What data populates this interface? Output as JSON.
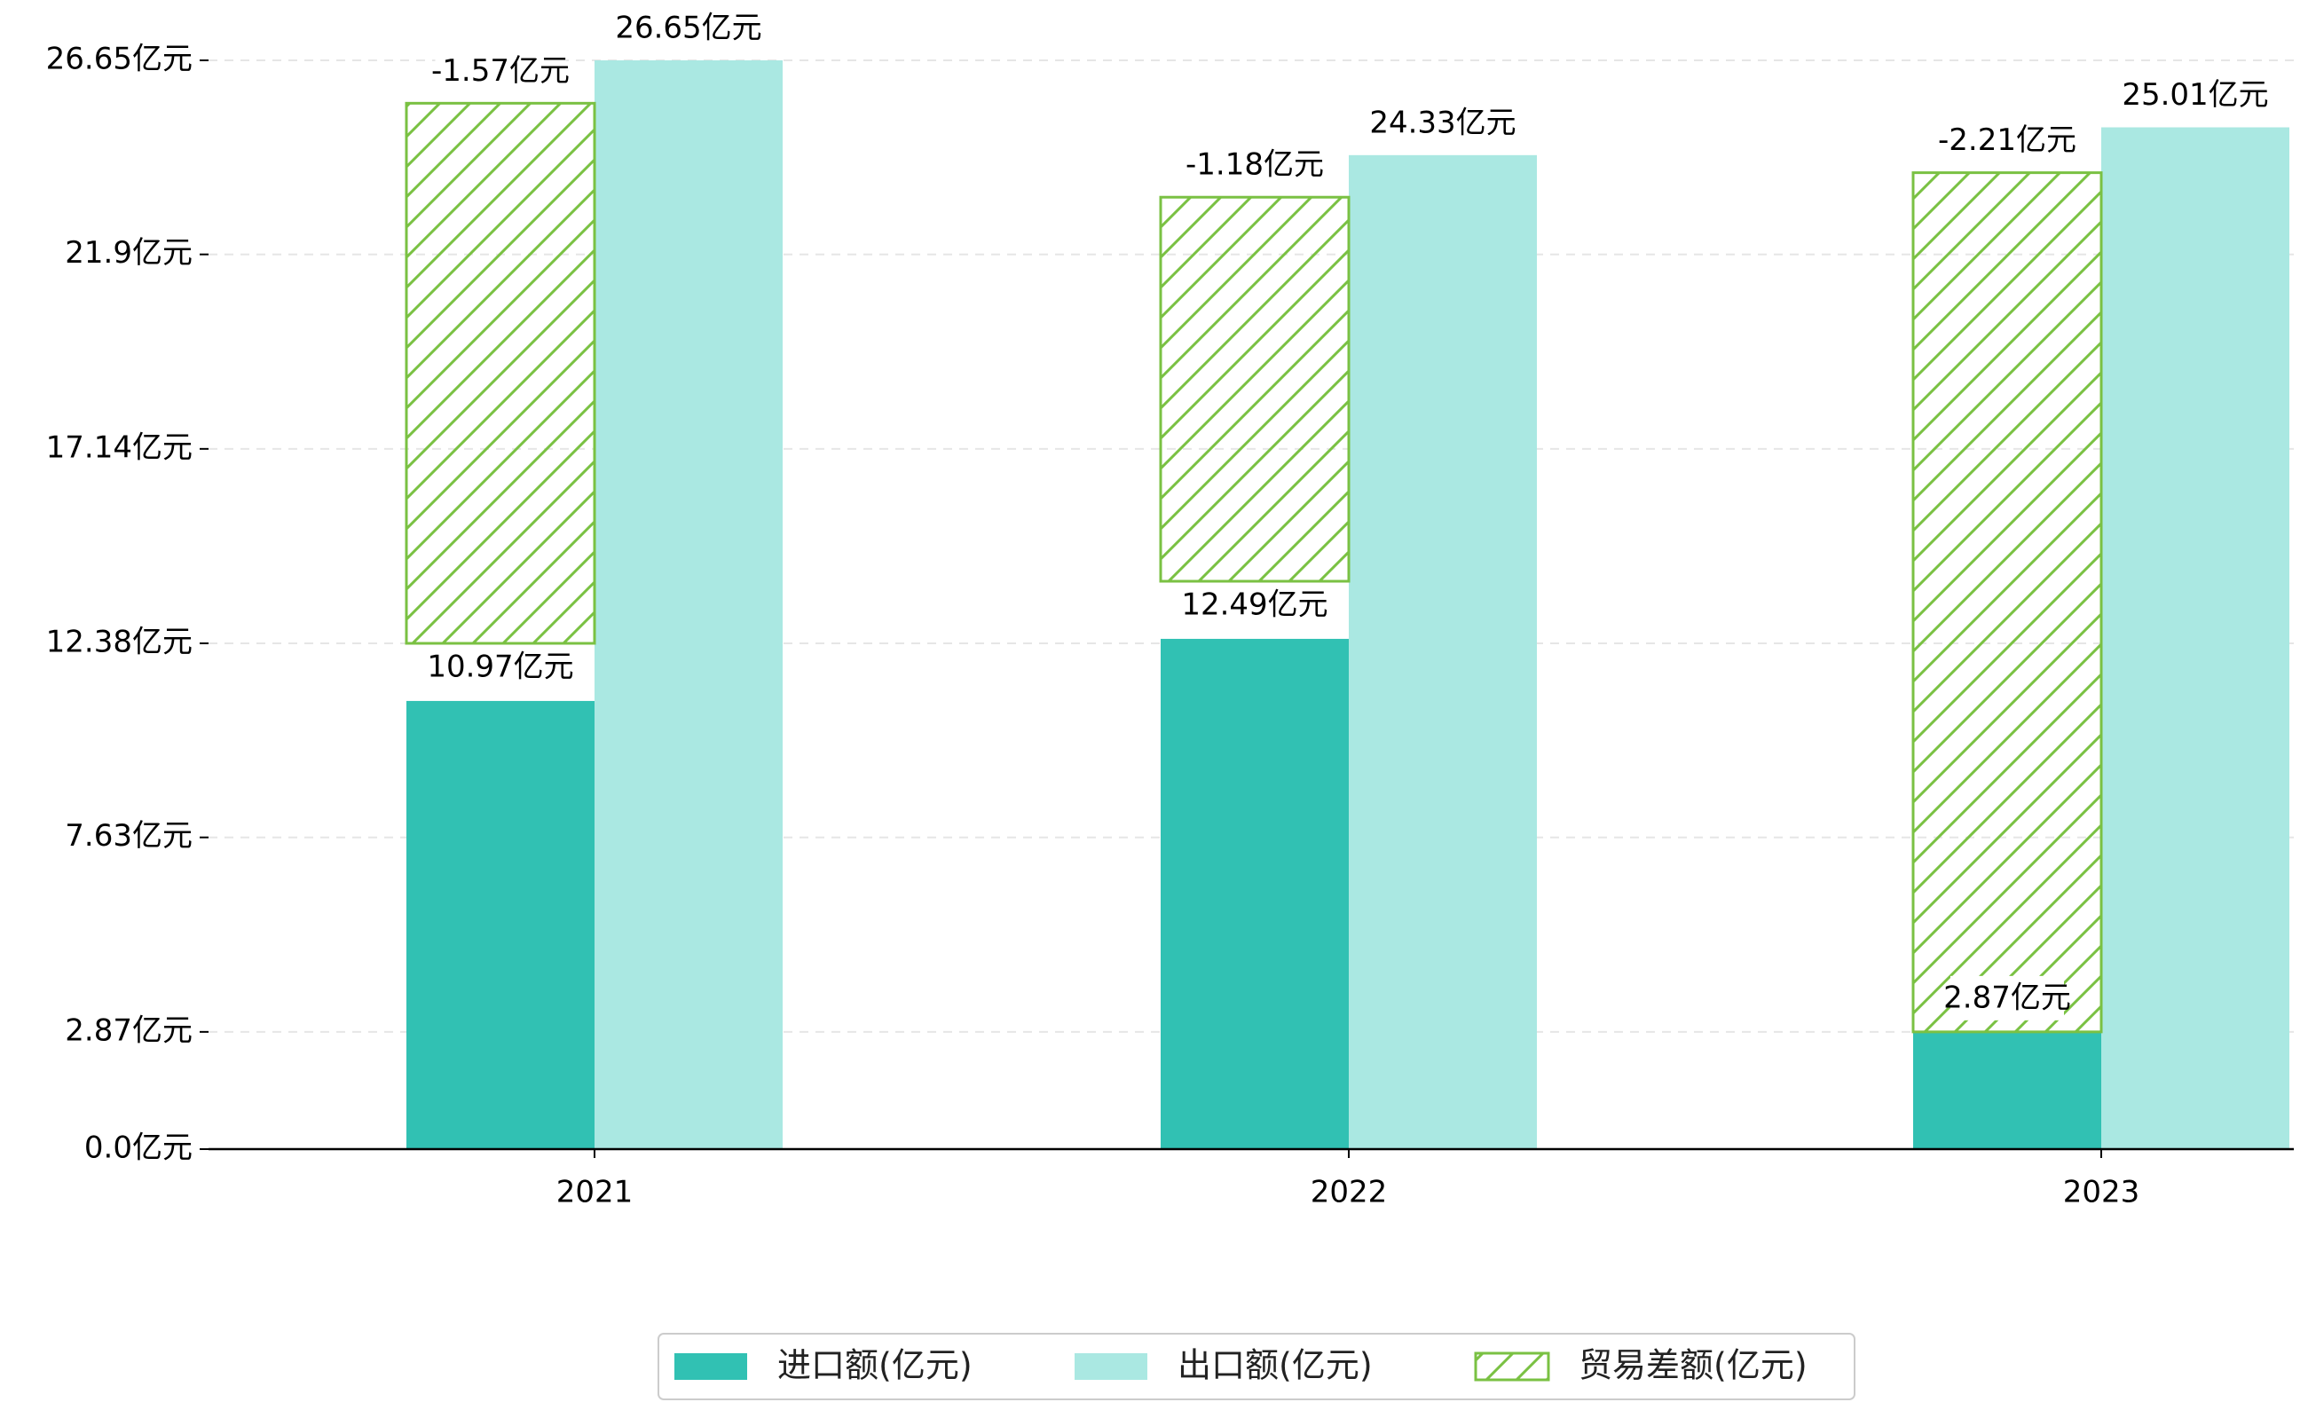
{
  "colors": {
    "import": "#31c1b3",
    "export": "#aae8e2",
    "balance_stroke": "#7ac143",
    "axis": "#000000",
    "grid": "#e6e6e6"
  },
  "legend": {
    "items": [
      {
        "label": "进口额(亿元)",
        "swatch": "import"
      },
      {
        "label": "出口额(亿元)",
        "swatch": "export"
      },
      {
        "label": "贸易差额(亿元)",
        "swatch": "balance"
      }
    ],
    "placement": "bottom-center"
  },
  "chart_data": {
    "type": "bar",
    "categories": [
      "2021",
      "2022",
      "2023"
    ],
    "series": [
      {
        "name": "进口额(亿元)",
        "values": [
          10.97,
          12.49,
          2.87
        ],
        "labels": [
          "10.97亿元",
          "12.49亿元",
          "2.87亿元"
        ]
      },
      {
        "name": "出口额(亿元)",
        "values": [
          26.65,
          24.33,
          25.01
        ],
        "labels": [
          "26.65亿元",
          "24.33亿元",
          "25.01亿元"
        ]
      },
      {
        "name": "贸易差额(亿元)",
        "values": [
          -1.57,
          -1.18,
          -2.21
        ],
        "labels": [
          "-1.57亿元",
          "-1.18亿元",
          "-2.21亿元"
        ],
        "drawn_from": [
          12.38,
          13.9,
          2.87
        ],
        "drawn_to": [
          25.6,
          23.3,
          23.9
        ]
      }
    ],
    "yticks": [
      "0.0亿元",
      "2.87亿元",
      "7.63亿元",
      "12.38亿元",
      "17.14亿元",
      "21.9亿元",
      "26.65亿元"
    ],
    "ytick_values": [
      0,
      2.87,
      7.63,
      12.38,
      17.14,
      21.9,
      26.65
    ],
    "ylim": [
      0,
      26.65
    ],
    "grid": "horizontal-dashed",
    "xlabel": "",
    "ylabel": "",
    "title": ""
  }
}
